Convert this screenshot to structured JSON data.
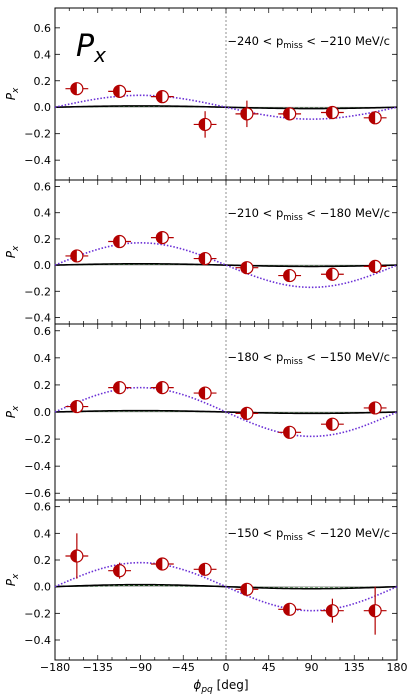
{
  "chart_data": {
    "type": "scatter",
    "panel_label": "P",
    "panel_label_sub": "x",
    "xlabel_main": "ϕ",
    "xlabel_sub": "pq",
    "xlabel_unit": " [deg]",
    "ylabel_main": "P",
    "ylabel_sub": "x",
    "xlim": [
      -180,
      180
    ],
    "xticks": [
      -180,
      -135,
      -90,
      -45,
      0,
      45,
      90,
      135,
      180
    ],
    "colors": {
      "point": "#b30000",
      "fit": "#6a2fd6",
      "model": "#000000",
      "model_alt": "#2a8a2a"
    },
    "panels": [
      {
        "range_label": "−240 < p",
        "range_sub": "miss",
        "range_unit": " < −210 MeV/c",
        "ylim": [
          -0.55,
          0.75
        ],
        "yticks": [
          -0.4,
          -0.2,
          0.0,
          0.2,
          0.4,
          0.6
        ],
        "points": [
          {
            "x": -157,
            "y": 0.14,
            "xerr": 12,
            "yerr": 0.04
          },
          {
            "x": -112,
            "y": 0.12,
            "xerr": 12,
            "yerr": 0.04
          },
          {
            "x": -67,
            "y": 0.08,
            "xerr": 12,
            "yerr": 0.04
          },
          {
            "x": -22,
            "y": -0.13,
            "xerr": 12,
            "yerr": 0.1
          },
          {
            "x": 22,
            "y": -0.05,
            "xerr": 12,
            "yerr": 0.1
          },
          {
            "x": 67,
            "y": -0.05,
            "xerr": 12,
            "yerr": 0.03
          },
          {
            "x": 112,
            "y": -0.04,
            "xerr": 12,
            "yerr": 0.03
          },
          {
            "x": 157,
            "y": -0.08,
            "xerr": 12,
            "yerr": 0.03
          }
        ],
        "fit_amp": -0.09,
        "model_amp": -0.01
      },
      {
        "range_label": "−210 < p",
        "range_sub": "miss",
        "range_unit": " < −180 MeV/c",
        "ylim": [
          -0.45,
          0.65
        ],
        "yticks": [
          -0.4,
          -0.2,
          0.0,
          0.2,
          0.4,
          0.6
        ],
        "points": [
          {
            "x": -157,
            "y": 0.07,
            "xerr": 12,
            "yerr": 0.02
          },
          {
            "x": -112,
            "y": 0.18,
            "xerr": 12,
            "yerr": 0.02
          },
          {
            "x": -67,
            "y": 0.21,
            "xerr": 12,
            "yerr": 0.02
          },
          {
            "x": -22,
            "y": 0.05,
            "xerr": 12,
            "yerr": 0.02
          },
          {
            "x": 22,
            "y": -0.02,
            "xerr": 12,
            "yerr": 0.02
          },
          {
            "x": 67,
            "y": -0.08,
            "xerr": 12,
            "yerr": 0.02
          },
          {
            "x": 112,
            "y": -0.07,
            "xerr": 12,
            "yerr": 0.02
          },
          {
            "x": 157,
            "y": -0.01,
            "xerr": 12,
            "yerr": 0.02
          }
        ],
        "fit_amp": -0.17,
        "model_amp": -0.01
      },
      {
        "range_label": "−180 < p",
        "range_sub": "miss",
        "range_unit": " < −150 MeV/c",
        "ylim": [
          -0.65,
          0.65
        ],
        "yticks": [
          -0.6,
          -0.4,
          -0.2,
          0.0,
          0.2,
          0.4,
          0.6
        ],
        "points": [
          {
            "x": -157,
            "y": 0.04,
            "xerr": 12,
            "yerr": 0.03
          },
          {
            "x": -112,
            "y": 0.18,
            "xerr": 12,
            "yerr": 0.02
          },
          {
            "x": -67,
            "y": 0.18,
            "xerr": 12,
            "yerr": 0.02
          },
          {
            "x": -22,
            "y": 0.14,
            "xerr": 12,
            "yerr": 0.02
          },
          {
            "x": 22,
            "y": -0.01,
            "xerr": 12,
            "yerr": 0.02
          },
          {
            "x": 67,
            "y": -0.15,
            "xerr": 12,
            "yerr": 0.02
          },
          {
            "x": 112,
            "y": -0.09,
            "xerr": 12,
            "yerr": 0.02
          },
          {
            "x": 157,
            "y": 0.03,
            "xerr": 12,
            "yerr": 0.03
          }
        ],
        "fit_amp": -0.18,
        "model_amp": -0.01
      },
      {
        "range_label": "−150 < p",
        "range_sub": "miss",
        "range_unit": " < −120 MeV/c",
        "ylim": [
          -0.55,
          0.65
        ],
        "yticks": [
          -0.4,
          -0.2,
          0.0,
          0.2,
          0.4,
          0.6
        ],
        "points": [
          {
            "x": -157,
            "y": 0.23,
            "xerr": 12,
            "yerr": 0.17
          },
          {
            "x": -112,
            "y": 0.12,
            "xerr": 12,
            "yerr": 0.06
          },
          {
            "x": -67,
            "y": 0.17,
            "xerr": 12,
            "yerr": 0.03
          },
          {
            "x": -22,
            "y": 0.13,
            "xerr": 12,
            "yerr": 0.03
          },
          {
            "x": 22,
            "y": -0.02,
            "xerr": 12,
            "yerr": 0.03
          },
          {
            "x": 67,
            "y": -0.17,
            "xerr": 12,
            "yerr": 0.04
          },
          {
            "x": 112,
            "y": -0.18,
            "xerr": 12,
            "yerr": 0.09
          },
          {
            "x": 157,
            "y": -0.18,
            "xerr": 12,
            "yerr": 0.18
          }
        ],
        "fit_amp": -0.18,
        "model_amp": -0.015
      }
    ]
  }
}
